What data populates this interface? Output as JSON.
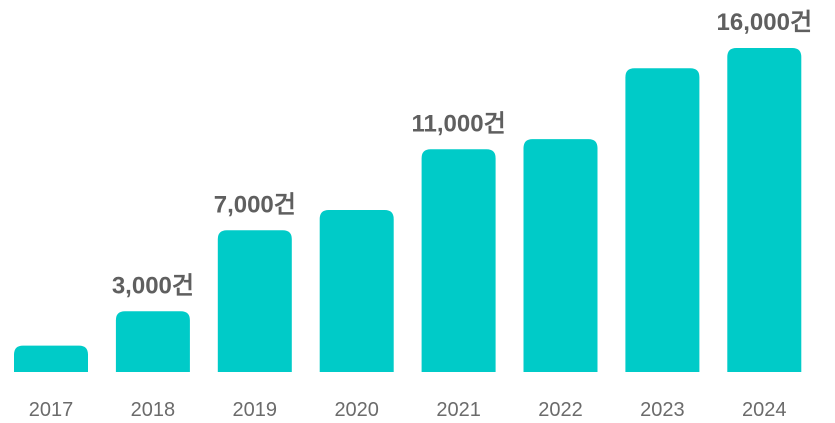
{
  "chart_data": {
    "type": "bar",
    "categories": [
      "2017",
      "2018",
      "2019",
      "2020",
      "2021",
      "2022",
      "2023",
      "2024"
    ],
    "values": [
      1300,
      3000,
      7000,
      8000,
      11000,
      11500,
      15000,
      16000
    ],
    "data_labels": [
      "",
      "3,000건",
      "7,000건",
      "",
      "11,000건",
      "",
      "",
      "16,000건"
    ],
    "title": "",
    "xlabel": "",
    "ylabel": "",
    "ylim": [
      0,
      16000
    ],
    "grid": false,
    "legend": "none",
    "bar_color": "#00CBC8"
  }
}
